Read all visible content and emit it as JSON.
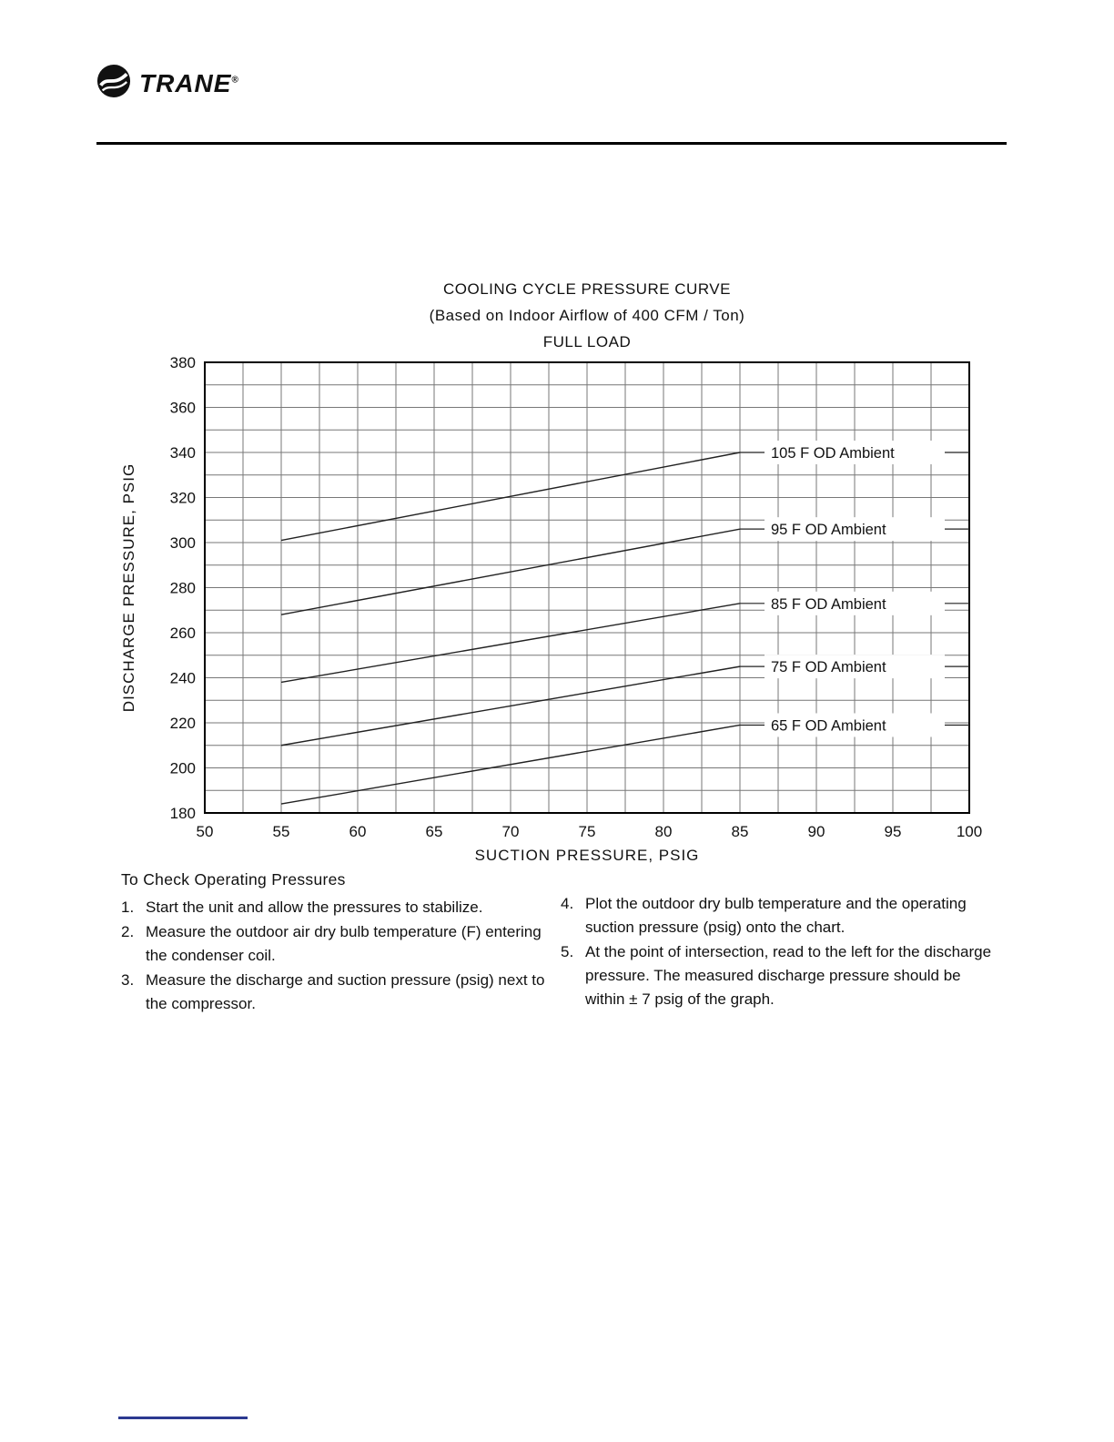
{
  "header": {
    "brand": "TRANE",
    "registered_mark": "®"
  },
  "colors": {
    "text": "#1a1a1a",
    "header_rule": "#000000",
    "footer_rule": "#2b3990",
    "grid": "#777777",
    "series_line": "#222222"
  },
  "chart_data": {
    "type": "line",
    "title": "COOLING CYCLE PRESSURE CURVE",
    "subtitle": "(Based on Indoor Airflow of 400 CFM / Ton)",
    "subtitle2": "FULL LOAD",
    "xlabel": "SUCTION PRESSURE, PSIG",
    "ylabel": "DISCHARGE PRESSURE, PSIG",
    "xlim": [
      50,
      100
    ],
    "ylim": [
      180,
      380
    ],
    "x_ticks": [
      50,
      55,
      60,
      65,
      70,
      75,
      80,
      85,
      90,
      95,
      100
    ],
    "y_ticks": [
      180,
      200,
      220,
      240,
      260,
      280,
      300,
      320,
      340,
      360,
      380
    ],
    "x_grid_step": 2.5,
    "y_grid_step": 10,
    "grid": true,
    "legend_position": "inline-right-labels",
    "series": [
      {
        "name": "105 F OD Ambient",
        "x": [
          55,
          85
        ],
        "values": [
          301,
          340
        ]
      },
      {
        "name": "95 F OD Ambient",
        "x": [
          55,
          85
        ],
        "values": [
          268,
          306
        ]
      },
      {
        "name": "85 F OD Ambient",
        "x": [
          55,
          85
        ],
        "values": [
          238,
          273
        ]
      },
      {
        "name": "75 F OD Ambient",
        "x": [
          55,
          85
        ],
        "values": [
          210,
          245
        ]
      },
      {
        "name": "65 F OD Ambient",
        "x": [
          55,
          85
        ],
        "values": [
          184,
          219
        ]
      }
    ]
  },
  "instructions": {
    "heading": "To Check Operating Pressures",
    "left": [
      {
        "num": "1.",
        "text": "Start the unit and allow the pressures to stabilize."
      },
      {
        "num": "2.",
        "text": "Measure the outdoor air dry bulb temperature (F) entering the condenser coil."
      },
      {
        "num": "3.",
        "text": "Measure the discharge and suction pressure (psig) next to the compressor."
      }
    ],
    "right": [
      {
        "num": "4.",
        "text": "Plot the outdoor dry bulb temperature and the operating suction pressure (psig) onto the chart."
      },
      {
        "num": "5.",
        "text": "At the point of intersection, read to the left for the discharge pressure. The measured discharge pressure should be within ± 7 psig of the graph."
      }
    ]
  }
}
